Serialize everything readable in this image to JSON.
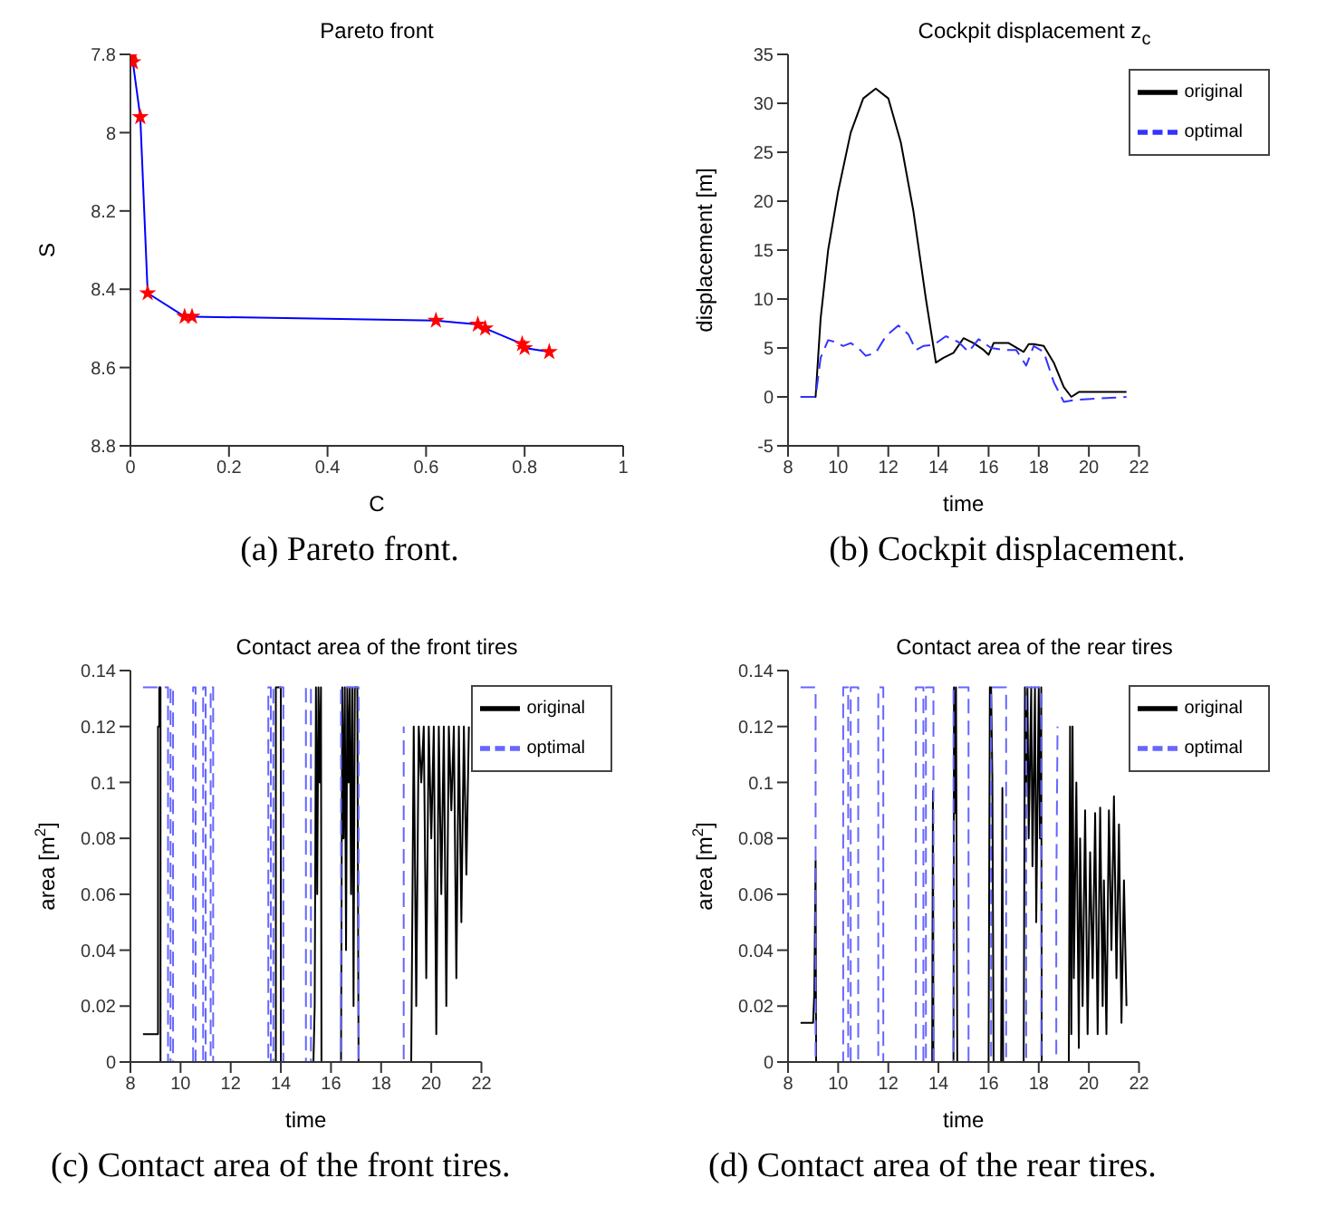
{
  "chart_data": [
    {
      "type": "line",
      "title": "Pareto front",
      "xlabel": "C",
      "ylabel": "S",
      "xlim": [
        0,
        1
      ],
      "xticks": [
        0,
        0.2,
        0.4,
        0.6,
        0.8,
        1
      ],
      "ylim": [
        8.8,
        7.8
      ],
      "yticks": [
        7.8,
        8,
        8.2,
        8.4,
        8.6,
        8.8
      ],
      "legend": false,
      "annotations": [
        "(a) Pareto front."
      ],
      "series": [
        {
          "color": "#0000ff",
          "marker": "none",
          "x": [
            0.005,
            0.005,
            0.02,
            0.035,
            0.11,
            0.125,
            0.62,
            0.705,
            0.72,
            0.795,
            0.8,
            0.85
          ],
          "values": [
            7.8,
            7.82,
            7.96,
            8.41,
            8.47,
            8.47,
            8.48,
            8.49,
            8.5,
            8.54,
            8.55,
            8.56
          ]
        },
        {
          "type": "scatter",
          "color": "#ff0000",
          "marker": "star",
          "x": [
            0.005,
            0.005,
            0.02,
            0.035,
            0.11,
            0.125,
            0.62,
            0.705,
            0.72,
            0.795,
            0.8,
            0.85
          ],
          "values": [
            7.8,
            7.82,
            7.96,
            8.41,
            8.47,
            8.47,
            8.48,
            8.49,
            8.5,
            8.54,
            8.55,
            8.56
          ]
        }
      ]
    },
    {
      "type": "line",
      "title": "Cockpit displacement z$_{c}$",
      "xlabel": "time",
      "ylabel": "displacement [m]",
      "xlim": [
        8,
        22
      ],
      "xticks": [
        8,
        10,
        12,
        14,
        16,
        18,
        20,
        22
      ],
      "ylim": [
        -5,
        35
      ],
      "yticks": [
        -5,
        0,
        5,
        10,
        15,
        20,
        25,
        30,
        35
      ],
      "legend": "top right",
      "annotations": [
        "(b) Cockpit displacement."
      ],
      "series": [
        {
          "name": "original",
          "color": "#000000",
          "line_style": "solid",
          "x": [
            8.5,
            9.1,
            9.3,
            9.6,
            10,
            10.5,
            11,
            11.5,
            12,
            12.5,
            13,
            13.5,
            13.9,
            14.2,
            14.6,
            15,
            15.4,
            15.8,
            16,
            16.2,
            16.8,
            17.4,
            17.6,
            17.8,
            18.2,
            18.6,
            19,
            19.3,
            19.6,
            21.5
          ],
          "values": [
            0,
            0,
            8,
            15,
            21,
            27,
            30.5,
            31.5,
            30.5,
            26,
            19,
            10,
            3.5,
            4,
            4.5,
            6,
            5.5,
            4.8,
            4.3,
            5.5,
            5.5,
            4.6,
            5.4,
            5.4,
            5.2,
            3.5,
            1,
            0,
            0.5,
            0.5
          ]
        },
        {
          "name": "optimal",
          "color": "#3333ff",
          "line_style": "dashed",
          "x": [
            8.5,
            9.1,
            9.3,
            9.6,
            9.9,
            10.2,
            10.5,
            10.8,
            11.1,
            11.5,
            11.9,
            12.4,
            12.8,
            13.1,
            13.4,
            13.8,
            14.3,
            14.8,
            15.2,
            15.6,
            16.1,
            16.6,
            17.1,
            17.5,
            17.8,
            18.2,
            18.6,
            19,
            19.5,
            21.5
          ],
          "values": [
            0,
            0,
            4,
            5.8,
            5.6,
            5.2,
            5.5,
            5,
            4.2,
            4.5,
            6.2,
            7.3,
            6.4,
            4.8,
            5.2,
            5.3,
            6.2,
            5.6,
            4.6,
            5.9,
            5,
            4.8,
            4.8,
            3.2,
            5.2,
            4.6,
            1.5,
            -0.5,
            -0.3,
            0
          ]
        }
      ]
    },
    {
      "type": "line",
      "title": "Contact area of the front tires",
      "xlabel": "time",
      "ylabel": "area [m$^{2}$]",
      "xlim": [
        8,
        22
      ],
      "xticks": [
        8,
        10,
        12,
        14,
        16,
        18,
        20,
        22
      ],
      "ylim": [
        0,
        0.14
      ],
      "yticks": [
        0,
        0.02,
        0.04,
        0.06,
        0.08,
        0.1,
        0.12,
        0.14
      ],
      "legend": "top right",
      "annotations": [
        "(c) Contact area of the front tires."
      ],
      "series": [
        {
          "name": "original",
          "color": "#000000",
          "line_style": "solid",
          "x": [
            8.5,
            9.1,
            9.1,
            9.15,
            9.15,
            9.2,
            9.2,
            13.8,
            13.8,
            14,
            14,
            15.3,
            15.35,
            15.4,
            15.45,
            15.5,
            15.55,
            15.6,
            15.62,
            16.4,
            16.45,
            16.5,
            16.55,
            16.6,
            16.65,
            16.7,
            16.75,
            16.8,
            16.85,
            16.9,
            16.95,
            17.05,
            17.1,
            19.2,
            19.3,
            19.4,
            19.5,
            19.6,
            19.7,
            19.8,
            19.9,
            20,
            20.1,
            20.2,
            20.3,
            20.4,
            20.5,
            20.6,
            20.7,
            20.8,
            20.9,
            21,
            21.1,
            21.2,
            21.3,
            21.4,
            21.5
          ],
          "values": [
            0.01,
            0.01,
            0.12,
            0.12,
            0.134,
            0.134,
            0,
            0,
            0.134,
            0.134,
            0,
            0,
            0.02,
            0.134,
            0.06,
            0.134,
            0.1,
            0.134,
            0,
            0,
            0.134,
            0.08,
            0.134,
            0.04,
            0.134,
            0.1,
            0.134,
            0.06,
            0.134,
            0.02,
            0.134,
            0.134,
            0,
            0,
            0.12,
            0.02,
            0.12,
            0.1,
            0.12,
            0.03,
            0.12,
            0.08,
            0.12,
            0.01,
            0.12,
            0.06,
            0.12,
            0.02,
            0.12,
            0.09,
            0.12,
            0.03,
            0.12,
            0.05,
            0.12,
            0.067,
            0.12
          ]
        },
        {
          "name": "optimal",
          "color": "#6666ff",
          "line_style": "dashed",
          "x": [
            8.5,
            9.5,
            9.5,
            9.6,
            9.6,
            9.7,
            9.7,
            10.5,
            10.5,
            10.6,
            10.6,
            10.9,
            10.9,
            11,
            11,
            11.2,
            11.2,
            11.3,
            11.3,
            13.5,
            13.5,
            13.6,
            13.6,
            13.7,
            13.7,
            14.1,
            14.1,
            15,
            15,
            15.2,
            15.2,
            16.4,
            16.4,
            17.1,
            17.1,
            18.9,
            18.9
          ],
          "values": [
            0.134,
            0.134,
            0,
            0,
            0.134,
            0.134,
            0,
            0,
            0.134,
            0.134,
            0,
            0,
            0.134,
            0.134,
            0,
            0,
            0.134,
            0.134,
            0,
            0,
            0.134,
            0.134,
            0,
            0,
            0.134,
            0.134,
            0,
            0,
            0.134,
            0.134,
            0,
            0,
            0.134,
            0.134,
            0,
            0,
            0.12
          ]
        }
      ]
    },
    {
      "type": "line",
      "title": "Contact area of the rear tires",
      "xlabel": "time",
      "ylabel": "area [m$^{2}$]",
      "xlim": [
        8,
        22
      ],
      "xticks": [
        8,
        10,
        12,
        14,
        16,
        18,
        20,
        22
      ],
      "ylim": [
        0,
        0.14
      ],
      "yticks": [
        0,
        0.02,
        0.04,
        0.06,
        0.08,
        0.1,
        0.12,
        0.14
      ],
      "legend": "top right",
      "annotations": [
        "(d) Contact area of the rear tires."
      ],
      "series": [
        {
          "name": "original",
          "color": "#000000",
          "line_style": "solid",
          "x": [
            8.5,
            9,
            9.05,
            9.1,
            9.12,
            13.75,
            13.78,
            13.8,
            14.6,
            14.62,
            14.66,
            14.7,
            14.75,
            16,
            16.05,
            16.1,
            16.15,
            16.2,
            16.5,
            16.52,
            16.55,
            16.58,
            17.4,
            17.45,
            17.5,
            17.55,
            17.6,
            17.7,
            17.75,
            17.85,
            17.9,
            18,
            18.05,
            18.1,
            18.12,
            19.2,
            19.25,
            19.3,
            19.35,
            19.4,
            19.5,
            19.6,
            19.65,
            19.75,
            19.85,
            19.95,
            20.05,
            20.15,
            20.25,
            20.35,
            20.45,
            20.55,
            20.6,
            20.7,
            20.8,
            20.9,
            21,
            21.1,
            21.2,
            21.3,
            21.4,
            21.5
          ],
          "values": [
            0.014,
            0.014,
            0.025,
            0.072,
            0,
            0,
            0.097,
            0,
            0,
            0.134,
            0.089,
            0.134,
            0,
            0,
            0.134,
            0.134,
            0.102,
            0,
            0,
            0.036,
            0.098,
            0,
            0,
            0.134,
            0.1,
            0.134,
            0.08,
            0.134,
            0.07,
            0.134,
            0.05,
            0.134,
            0.08,
            0.134,
            0,
            0,
            0.12,
            0.01,
            0.12,
            0.03,
            0.1,
            0.005,
            0.08,
            0.02,
            0.09,
            0.01,
            0.075,
            0.03,
            0.089,
            0.01,
            0.091,
            0.02,
            0.065,
            0.01,
            0.09,
            0.04,
            0.095,
            0.03,
            0.085,
            0.014,
            0.065,
            0.02
          ]
        },
        {
          "name": "optimal",
          "color": "#6666ff",
          "line_style": "dashed",
          "x": [
            8.5,
            9.1,
            9.1,
            10.2,
            10.2,
            10.4,
            10.4,
            10.5,
            10.5,
            10.8,
            10.8,
            11.6,
            11.6,
            11.8,
            11.8,
            13.1,
            13.1,
            13.4,
            13.4,
            13.5,
            13.5,
            13.8,
            13.8,
            14.6,
            14.6,
            15.2,
            15.2,
            16.1,
            16.1,
            16.7,
            16.7,
            17.5,
            17.5,
            18.1,
            18.1,
            18.7,
            18.7,
            18.75
          ],
          "values": [
            0.134,
            0.134,
            0,
            0,
            0.134,
            0.134,
            0,
            0,
            0.134,
            0.134,
            0,
            0,
            0.134,
            0.134,
            0,
            0,
            0.134,
            0.134,
            0,
            0,
            0.134,
            0.134,
            0,
            0,
            0.134,
            0.134,
            0,
            0,
            0.134,
            0.134,
            0,
            0,
            0.134,
            0.134,
            0,
            0,
            0.06,
            0.12
          ]
        }
      ]
    }
  ]
}
